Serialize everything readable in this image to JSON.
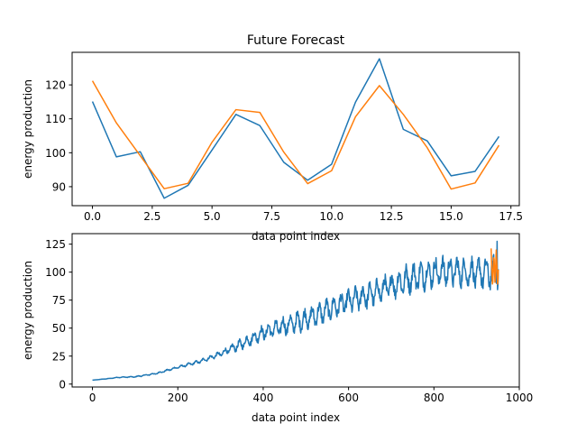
{
  "chart_data": [
    {
      "type": "line",
      "title": "Future Forecast",
      "xlabel": "data point index",
      "ylabel": "energy production",
      "xlim": [
        -0.85,
        17.85
      ],
      "ylim": [
        84.4,
        129.6
      ],
      "xticks": [
        0,
        2.5,
        5,
        7.5,
        10,
        12.5,
        15,
        17.5
      ],
      "xtick_labels": [
        "0.0",
        "2.5",
        "5.0",
        "7.5",
        "10.0",
        "12.5",
        "15.0",
        "17.5"
      ],
      "yticks": [
        90,
        100,
        110,
        120
      ],
      "ytick_labels": [
        "90",
        "100",
        "110",
        "120"
      ],
      "grid": false,
      "x": [
        0,
        1,
        2,
        3,
        4,
        5,
        6,
        7,
        8,
        9,
        10,
        11,
        12,
        13,
        14,
        15,
        16,
        17
      ],
      "series": [
        {
          "color": "#1f77b4",
          "values": [
            115.1,
            98.8,
            100.3,
            86.6,
            90.4,
            100.8,
            111.3,
            108.0,
            97.2,
            91.9,
            96.6,
            114.9,
            127.7,
            106.9,
            103.5,
            93.2,
            94.5,
            104.8
          ]
        },
        {
          "color": "#ff7f0e",
          "values": [
            121.2,
            108.8,
            99.1,
            89.4,
            91.0,
            103.1,
            112.7,
            111.9,
            100.2,
            90.9,
            94.7,
            110.6,
            119.8,
            111.3,
            101.5,
            89.3,
            91.1,
            102.2
          ]
        }
      ]
    },
    {
      "type": "line",
      "title": "",
      "xlabel": "data point index",
      "ylabel": "energy production",
      "xlim": [
        -47.6,
        1000
      ],
      "ylim": [
        -2.6,
        134.4
      ],
      "xticks": [
        0,
        200,
        400,
        600,
        800,
        1000
      ],
      "xtick_labels": [
        "0",
        "200",
        "400",
        "600",
        "800",
        "1000"
      ],
      "yticks": [
        0,
        25,
        50,
        75,
        100,
        125
      ],
      "ytick_labels": [
        "0",
        "25",
        "50",
        "75",
        "100",
        "125"
      ],
      "grid": false,
      "series": [
        {
          "color": "#1f77b4",
          "x_range": [
            0,
            951
          ],
          "trend_points": [
            [
              0,
              3.5
            ],
            [
              40,
              5
            ],
            [
              60,
              6
            ],
            [
              100,
              6.5
            ],
            [
              150,
              9.5
            ],
            [
              200,
              15
            ],
            [
              250,
              20
            ],
            [
              300,
              27
            ],
            [
              350,
              36
            ],
            [
              400,
              46
            ],
            [
              450,
              52
            ],
            [
              500,
              58
            ],
            [
              550,
              66
            ],
            [
              600,
              74
            ],
            [
              650,
              80
            ],
            [
              700,
              88
            ],
            [
              750,
              95
            ],
            [
              800,
              100
            ],
            [
              850,
              101
            ],
            [
              900,
              99
            ],
            [
              951,
              100
            ]
          ],
          "noise_points": [
            [
              0,
              0
            ],
            [
              200,
              1
            ],
            [
              280,
              2
            ],
            [
              350,
              5
            ],
            [
              400,
              7
            ],
            [
              450,
              9
            ],
            [
              500,
              10
            ],
            [
              600,
              11
            ],
            [
              700,
              13
            ],
            [
              800,
              14
            ],
            [
              951,
              15
            ]
          ],
          "peak": [
            948,
            127.5
          ]
        },
        {
          "color": "#ff7f0e",
          "x_range": [
            934,
            951
          ],
          "values": [
            121.2,
            108.8,
            99.1,
            89.4,
            91.0,
            103.1,
            112.7,
            111.9,
            100.2,
            90.9,
            94.7,
            110.6,
            119.8,
            111.3,
            101.5,
            89.3,
            91.1,
            102.2
          ]
        }
      ]
    }
  ]
}
